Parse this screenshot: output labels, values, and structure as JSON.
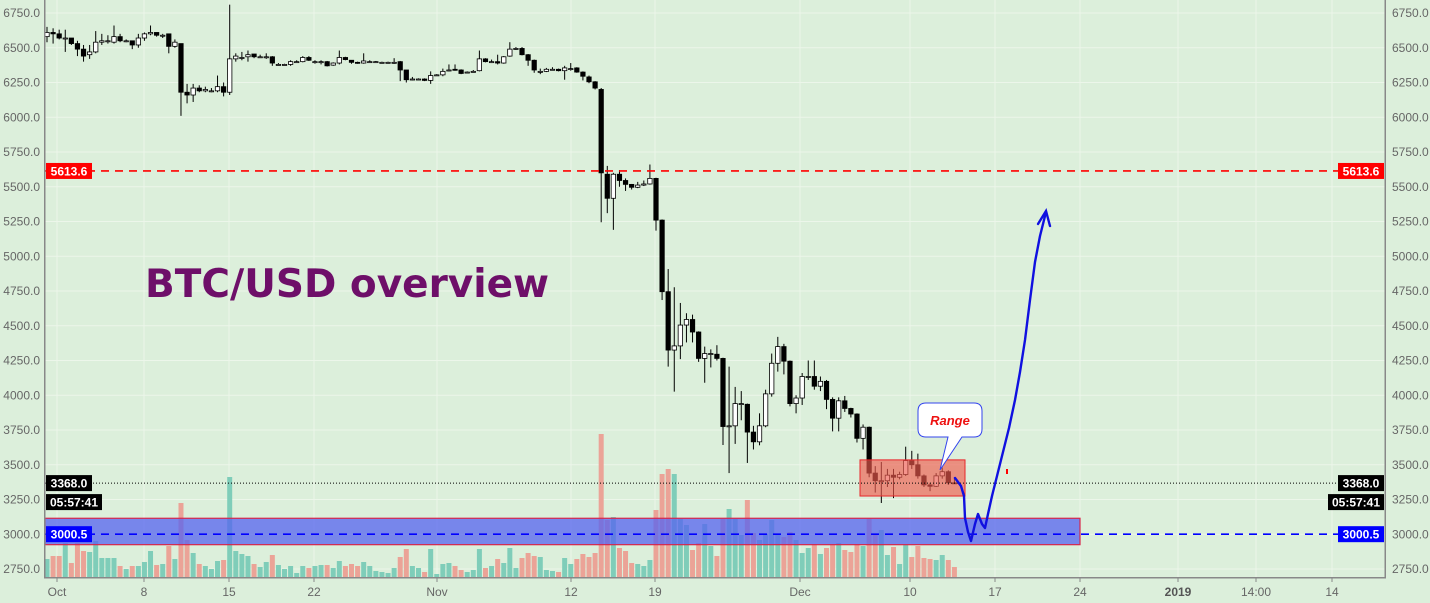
{
  "chart_data": {
    "type": "candlestick",
    "title": "BTC/USD overview",
    "xlabel": "",
    "ylabel": "",
    "ylim": [
      2750,
      6750
    ],
    "grid": true,
    "y_ticks": [
      "2750.0",
      "3000.0",
      "3250.0",
      "3500.0",
      "3750.0",
      "4000.0",
      "4250.0",
      "4500.0",
      "4750.0",
      "5000.0",
      "5250.0",
      "5500.0",
      "5750.0",
      "6000.0",
      "6250.0",
      "6500.0",
      "6750.0"
    ],
    "x_ticks": [
      {
        "label": "Oct",
        "bold": false
      },
      {
        "label": "8",
        "bold": false
      },
      {
        "label": "15",
        "bold": false
      },
      {
        "label": "22",
        "bold": false
      },
      {
        "label": "Nov",
        "bold": false
      },
      {
        "label": "12",
        "bold": false
      },
      {
        "label": "19",
        "bold": false
      },
      {
        "label": "Dec",
        "bold": false
      },
      {
        "label": "10",
        "bold": false
      },
      {
        "label": "17",
        "bold": false
      },
      {
        "label": "24",
        "bold": false
      },
      {
        "label": "2019",
        "bold": true
      },
      {
        "label": "14:00",
        "bold": false
      },
      {
        "label": "14",
        "bold": false
      }
    ],
    "ohlc_fields": [
      "open",
      "high",
      "low",
      "close"
    ],
    "candles": [
      [
        6580,
        6650,
        6540,
        6610
      ],
      [
        6610,
        6640,
        6530,
        6600
      ],
      [
        6600,
        6630,
        6560,
        6570
      ],
      [
        6570,
        6630,
        6470,
        6570
      ],
      [
        6570,
        6570,
        6520,
        6530
      ],
      [
        6530,
        6550,
        6440,
        6490
      ],
      [
        6490,
        6520,
        6400,
        6440
      ],
      [
        6450,
        6520,
        6420,
        6470
      ],
      [
        6470,
        6620,
        6460,
        6540
      ],
      [
        6540,
        6600,
        6520,
        6550
      ],
      [
        6550,
        6590,
        6530,
        6550
      ],
      [
        6540,
        6660,
        6530,
        6580
      ],
      [
        6580,
        6600,
        6540,
        6550
      ],
      [
        6550,
        6560,
        6540,
        6550
      ],
      [
        6550,
        6550,
        6490,
        6520
      ],
      [
        6520,
        6600,
        6500,
        6570
      ],
      [
        6570,
        6610,
        6550,
        6600
      ],
      [
        6600,
        6660,
        6590,
        6610
      ],
      [
        6610,
        6610,
        6580,
        6590
      ],
      [
        6590,
        6600,
        6570,
        6590
      ],
      [
        6600,
        6600,
        6460,
        6510
      ],
      [
        6510,
        6560,
        6500,
        6540
      ],
      [
        6530,
        6530,
        6010,
        6180
      ],
      [
        6180,
        6240,
        6100,
        6160
      ],
      [
        6160,
        6240,
        6110,
        6210
      ],
      [
        6210,
        6230,
        6180,
        6190
      ],
      [
        6190,
        6220,
        6180,
        6200
      ],
      [
        6190,
        6210,
        6180,
        6190
      ],
      [
        6190,
        6300,
        6180,
        6220
      ],
      [
        6220,
        6250,
        6150,
        6180
      ],
      [
        6180,
        6810,
        6160,
        6420
      ],
      [
        6420,
        6460,
        6400,
        6440
      ],
      [
        6430,
        6470,
        6410,
        6430
      ],
      [
        6435,
        6480,
        6400,
        6450
      ],
      [
        6455,
        6455,
        6425,
        6435
      ],
      [
        6435,
        6450,
        6430,
        6435
      ],
      [
        6435,
        6460,
        6420,
        6435
      ],
      [
        6435,
        6440,
        6370,
        6390
      ],
      [
        6380,
        6390,
        6375,
        6380
      ],
      [
        6380,
        6385,
        6375,
        6380
      ],
      [
        6380,
        6410,
        6370,
        6400
      ],
      [
        6400,
        6410,
        6395,
        6400
      ],
      [
        6400,
        6440,
        6395,
        6430
      ],
      [
        6430,
        6440,
        6405,
        6410
      ],
      [
        6400,
        6410,
        6385,
        6400
      ],
      [
        6400,
        6410,
        6380,
        6400
      ],
      [
        6400,
        6405,
        6365,
        6370
      ],
      [
        6375,
        6395,
        6370,
        6390
      ],
      [
        6390,
        6480,
        6380,
        6430
      ],
      [
        6430,
        6435,
        6410,
        6415
      ],
      [
        6410,
        6410,
        6385,
        6395
      ],
      [
        6395,
        6400,
        6385,
        6390
      ],
      [
        6390,
        6460,
        6385,
        6405
      ],
      [
        6400,
        6410,
        6395,
        6400
      ],
      [
        6400,
        6405,
        6395,
        6400
      ],
      [
        6395,
        6400,
        6390,
        6395
      ],
      [
        6395,
        6400,
        6390,
        6395
      ],
      [
        6395,
        6425,
        6385,
        6395
      ],
      [
        6400,
        6405,
        6260,
        6340
      ],
      [
        6340,
        6340,
        6250,
        6270
      ],
      [
        6275,
        6290,
        6265,
        6275
      ],
      [
        6275,
        6280,
        6270,
        6275
      ],
      [
        6275,
        6280,
        6260,
        6265
      ],
      [
        6265,
        6330,
        6240,
        6300
      ],
      [
        6305,
        6310,
        6300,
        6305
      ],
      [
        6305,
        6350,
        6295,
        6330
      ],
      [
        6340,
        6380,
        6330,
        6340
      ],
      [
        6345,
        6380,
        6335,
        6340
      ],
      [
        6340,
        6345,
        6310,
        6315
      ],
      [
        6325,
        6330,
        6320,
        6325
      ],
      [
        6330,
        6340,
        6325,
        6330
      ],
      [
        6335,
        6480,
        6330,
        6420
      ],
      [
        6420,
        6425,
        6395,
        6400
      ],
      [
        6400,
        6415,
        6390,
        6400
      ],
      [
        6400,
        6450,
        6380,
        6390
      ],
      [
        6390,
        6440,
        6385,
        6435
      ],
      [
        6440,
        6540,
        6435,
        6490
      ],
      [
        6495,
        6505,
        6485,
        6495
      ],
      [
        6495,
        6505,
        6445,
        6450
      ],
      [
        6450,
        6455,
        6370,
        6410
      ],
      [
        6410,
        6415,
        6320,
        6340
      ],
      [
        6330,
        6350,
        6310,
        6330
      ],
      [
        6330,
        6355,
        6325,
        6345
      ],
      [
        6345,
        6360,
        6340,
        6345
      ],
      [
        6345,
        6350,
        6330,
        6335
      ],
      [
        6335,
        6370,
        6270,
        6355
      ],
      [
        6350,
        6390,
        6335,
        6350
      ],
      [
        6355,
        6360,
        6320,
        6325
      ],
      [
        6325,
        6330,
        6265,
        6295
      ],
      [
        6290,
        6300,
        6245,
        6255
      ],
      [
        6255,
        6260,
        6200,
        6210
      ],
      [
        6200,
        6210,
        5245,
        5600
      ],
      [
        5590,
        5650,
        5310,
        5417
      ],
      [
        5417,
        5600,
        5190,
        5590
      ],
      [
        5590,
        5620,
        5500,
        5545
      ],
      [
        5545,
        5560,
        5470,
        5517
      ],
      [
        5517,
        5520,
        5480,
        5496
      ],
      [
        5496,
        5535,
        5490,
        5512
      ],
      [
        5512,
        5545,
        5505,
        5520
      ],
      [
        5520,
        5660,
        5515,
        5560
      ],
      [
        5560,
        5565,
        5184,
        5260
      ],
      [
        5260,
        5265,
        4685,
        4745
      ],
      [
        4745,
        4908,
        4206,
        4325
      ],
      [
        4325,
        4777,
        4026,
        4355
      ],
      [
        4355,
        4664,
        4260,
        4505
      ],
      [
        4505,
        4590,
        4380,
        4545
      ],
      [
        4545,
        4580,
        4380,
        4455
      ],
      [
        4455,
        4460,
        4240,
        4265
      ],
      [
        4265,
        4350,
        4090,
        4300
      ],
      [
        4300,
        4330,
        4200,
        4300
      ],
      [
        4295,
        4360,
        4250,
        4265
      ],
      [
        4265,
        4270,
        3642,
        3775
      ],
      [
        3780,
        4206,
        3440,
        3780
      ],
      [
        3780,
        4060,
        3650,
        3940
      ],
      [
        3940,
        4030,
        3820,
        3940
      ],
      [
        3935,
        3940,
        3513,
        3735
      ],
      [
        3735,
        3780,
        3610,
        3665
      ],
      [
        3665,
        3870,
        3640,
        3780
      ],
      [
        3780,
        4040,
        3770,
        4010
      ],
      [
        4010,
        4300,
        3990,
        4230
      ],
      [
        4230,
        4420,
        4170,
        4350
      ],
      [
        4350,
        4370,
        4150,
        4245
      ],
      [
        4245,
        4250,
        3920,
        3940
      ],
      [
        3940,
        4000,
        3870,
        3980
      ],
      [
        3980,
        4160,
        3930,
        4135
      ],
      [
        4135,
        4250,
        4110,
        4135
      ],
      [
        4135,
        4250,
        4040,
        4065
      ],
      [
        4065,
        4135,
        4030,
        4100
      ],
      [
        4100,
        4110,
        3900,
        3970
      ],
      [
        3970,
        3985,
        3740,
        3835
      ],
      [
        3835,
        3985,
        3740,
        3960
      ],
      [
        3960,
        3995,
        3880,
        3905
      ],
      [
        3905,
        3910,
        3840,
        3865
      ],
      [
        3865,
        3870,
        3660,
        3690
      ],
      [
        3690,
        3790,
        3610,
        3770
      ],
      [
        3770,
        3775,
        3410,
        3440
      ],
      [
        3440,
        3490,
        3300,
        3385
      ],
      [
        3385,
        3520,
        3225,
        3385
      ],
      [
        3385,
        3470,
        3340,
        3425
      ],
      [
        3425,
        3470,
        3260,
        3410
      ],
      [
        3410,
        3450,
        3395,
        3430
      ],
      [
        3430,
        3630,
        3420,
        3530
      ],
      [
        3530,
        3600,
        3470,
        3500
      ],
      [
        3500,
        3580,
        3400,
        3420
      ],
      [
        3420,
        3430,
        3340,
        3355
      ],
      [
        3355,
        3370,
        3310,
        3345
      ],
      [
        3345,
        3440,
        3340,
        3420
      ],
      [
        3420,
        3480,
        3400,
        3450
      ],
      [
        3450,
        3460,
        3355,
        3370
      ],
      [
        3370,
        3400,
        3365,
        3368
      ]
    ],
    "volume_relative": [
      18,
      21,
      21,
      34,
      14,
      34,
      26,
      25,
      36,
      19,
      19,
      19,
      11,
      8,
      11,
      11,
      15,
      26,
      12,
      13,
      31,
      18,
      74,
      37,
      24,
      13,
      11,
      8,
      16,
      17,
      100,
      26,
      23,
      21,
      13,
      10,
      15,
      22,
      12,
      8,
      11,
      4,
      11,
      9,
      11,
      12,
      12,
      9,
      16,
      11,
      13,
      11,
      15,
      11,
      6,
      5,
      4,
      9,
      20,
      28,
      11,
      9,
      5,
      28,
      3,
      13,
      14,
      11,
      7,
      5,
      7,
      28,
      9,
      11,
      18,
      14,
      29,
      9,
      19,
      24,
      21,
      20,
      7,
      6,
      5,
      19,
      13,
      18,
      23,
      20,
      24,
      143,
      57,
      60,
      29,
      26,
      14,
      13,
      11,
      17,
      67,
      103,
      108,
      103,
      58,
      52,
      27,
      34,
      53,
      31,
      21,
      58,
      68,
      58,
      42,
      77,
      44,
      37,
      43,
      57,
      42,
      40,
      45,
      37,
      24,
      29,
      33,
      23,
      29,
      32,
      34,
      27,
      25,
      32,
      31,
      59,
      42,
      47,
      22,
      30,
      13,
      32,
      20,
      31,
      19,
      18,
      17,
      22,
      17,
      10
    ],
    "horizontal_lines": [
      {
        "price": 5613.6,
        "label": "5613.6",
        "style": "dashed",
        "color": "#ff0000"
      },
      {
        "price": 3368.0,
        "label": "3368.0",
        "style": "dotted",
        "color": "#000000"
      },
      {
        "price": 3000.5,
        "label": "3000.5",
        "style": "dashed",
        "color": "#0000ff"
      }
    ],
    "countdown_label": "05:57:41",
    "zones": {
      "range_box": {
        "low": 3275,
        "high": 3535,
        "color": "#f05a4e"
      },
      "support_zone": {
        "low": 2925,
        "high": 3115,
        "color": "#5563f0"
      }
    },
    "annotations": {
      "callout": "Range",
      "projection_color": "#1010e0"
    },
    "colors": {
      "background": "#dcefdb",
      "bear_candle": "#000000",
      "bull_candle": "#ffffff",
      "volume_up": "#7fcdb9",
      "volume_down": "#eba397",
      "title": "#6e0f69"
    }
  }
}
